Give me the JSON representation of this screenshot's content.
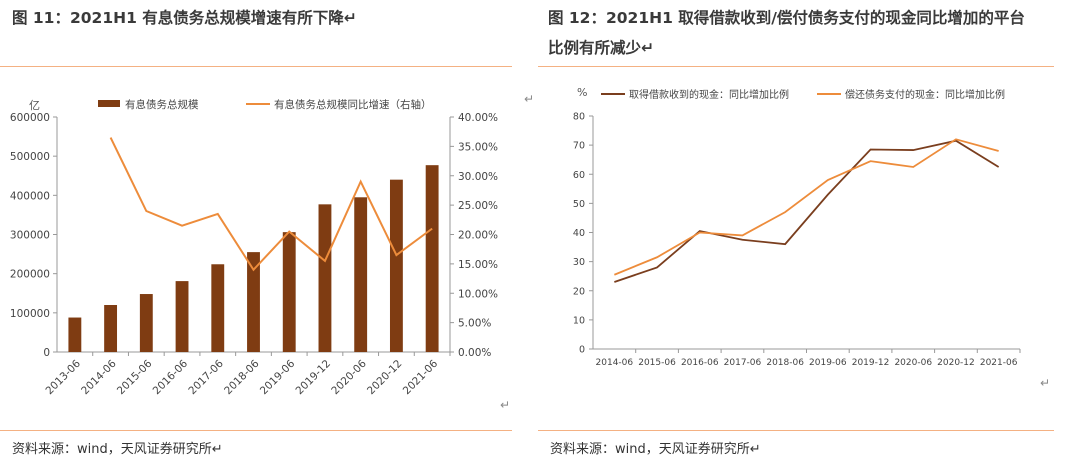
{
  "left": {
    "title": "图 11：2021H1 有息债务总规模增速有所下降↵",
    "source": "资料来源：wind，天风证券研究所↵",
    "return_mark": "↵"
  },
  "right": {
    "title_line1": "图 12：2021H1 取得借款收到/偿付债务支付的现金同比增加的平台",
    "title_line2": "比例有所减少↵",
    "source": "资料来源：wind，天风证券研究所↵",
    "return_mark": "↵"
  },
  "colors": {
    "bar": "#7f3c12",
    "line_orange": "#ed8c3b",
    "line_brown": "#7a3e1e",
    "rule": "#f4b183"
  },
  "chart_data": [
    {
      "type": "bar",
      "y_unit_label": "亿",
      "categories": [
        "2013-06",
        "2014-06",
        "2015-06",
        "2016-06",
        "2017-06",
        "2018-06",
        "2019-06",
        "2019-12",
        "2020-06",
        "2020-12",
        "2021-06"
      ],
      "series": [
        {
          "name": "有息债务总规模",
          "type": "bar",
          "axis": "left",
          "values": [
            88000,
            120000,
            148000,
            181000,
            224000,
            255000,
            306000,
            377000,
            395000,
            440000,
            477000
          ]
        },
        {
          "name": "有息债务总规模同比增速（右轴）",
          "type": "line",
          "axis": "right",
          "values": [
            null,
            0.365,
            0.24,
            0.215,
            0.235,
            0.14,
            0.205,
            0.155,
            0.29,
            0.165,
            0.21
          ]
        }
      ],
      "yleft": {
        "ylim": [
          0,
          600000
        ],
        "ticks": [
          0,
          100000,
          200000,
          300000,
          400000,
          500000,
          600000
        ]
      },
      "yright": {
        "ylim": [
          0,
          0.4
        ],
        "ticks": [
          "0.00%",
          "5.00%",
          "10.00%",
          "15.00%",
          "20.00%",
          "25.00%",
          "30.00%",
          "35.00%",
          "40.00%"
        ]
      },
      "legend_position": "top"
    },
    {
      "type": "line",
      "y_unit_label": "%",
      "categories": [
        "2014-06",
        "2015-06",
        "2016-06",
        "2017-06",
        "2018-06",
        "2019-06",
        "2019-12",
        "2020-06",
        "2020-12",
        "2021-06"
      ],
      "series": [
        {
          "name": "取得借款收到的现金：同比增加比例",
          "values": [
            23,
            28,
            40.5,
            37.5,
            36,
            53,
            68.5,
            68.3,
            71.5,
            62.5
          ]
        },
        {
          "name": "偿还债务支付的现金：同比增加比例",
          "values": [
            25.5,
            31.5,
            40,
            39,
            47,
            58,
            64.5,
            62.5,
            72,
            68
          ]
        }
      ],
      "ylim": [
        0,
        80
      ],
      "yticks": [
        0,
        10,
        20,
        30,
        40,
        50,
        60,
        70,
        80
      ],
      "legend_position": "top"
    }
  ]
}
